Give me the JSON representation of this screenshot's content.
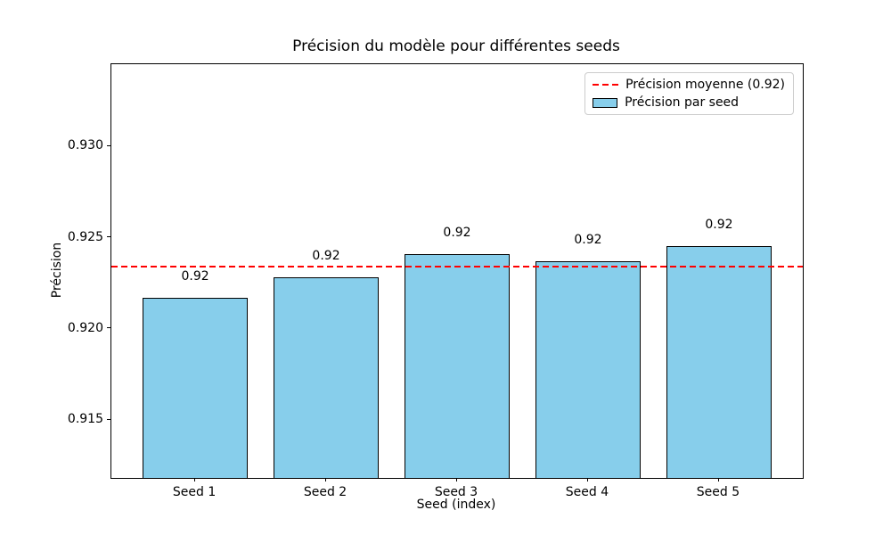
{
  "chart_data": {
    "type": "bar",
    "title": "Précision du modèle pour différentes seeds",
    "xlabel": "Seed (index)",
    "ylabel": "Précision",
    "categories": [
      "Seed 1",
      "Seed 2",
      "Seed 3",
      "Seed 4",
      "Seed 5"
    ],
    "values": [
      0.9217,
      0.9228,
      0.9241,
      0.9237,
      0.9245
    ],
    "value_labels": [
      "0.92",
      "0.92",
      "0.92",
      "0.92",
      "0.92"
    ],
    "mean_value": 0.9234,
    "mean_label": "0.92",
    "ylim": [
      0.9118,
      0.9345
    ],
    "xlim": [
      -0.64,
      4.64
    ],
    "bar_width_units": 0.8,
    "yticks": [
      0.915,
      0.92,
      0.925,
      0.93
    ],
    "ytick_labels": [
      "0.915",
      "0.920",
      "0.925",
      "0.930"
    ],
    "grid": false,
    "legend": {
      "position": "upper right",
      "entries": [
        {
          "label": "Précision moyenne (0.92)",
          "marker": "dashed-line"
        },
        {
          "label": "Précision par seed",
          "marker": "patch"
        }
      ]
    },
    "colors": {
      "bar_fill": "#87CEEB",
      "bar_edge": "#000000",
      "mean_line": "#FF0000",
      "legend_border": "#CCCCCC",
      "text": "#000000",
      "figure_background": "#FFFFFF"
    }
  }
}
